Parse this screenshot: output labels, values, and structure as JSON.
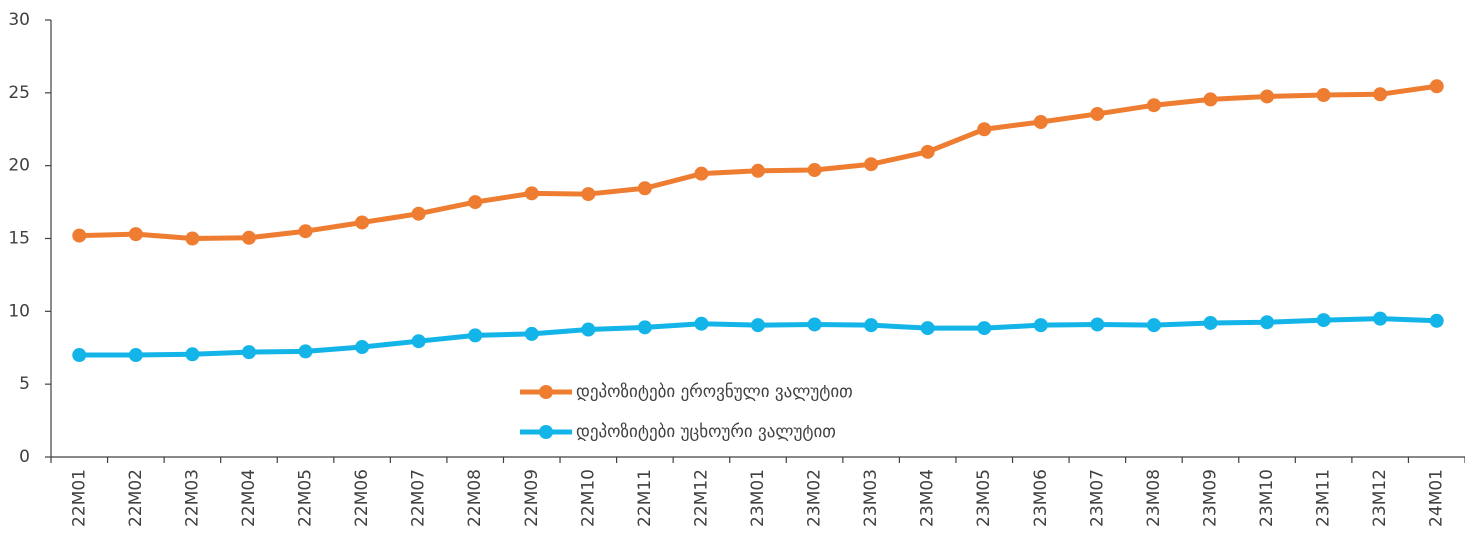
{
  "chart_data": {
    "type": "line",
    "categories": [
      "22M01",
      "22M02",
      "22M03",
      "22M04",
      "22M05",
      "22M06",
      "22M07",
      "22M08",
      "22M09",
      "22M10",
      "22M11",
      "22M12",
      "23M01",
      "23M02",
      "23M03",
      "23M04",
      "23M05",
      "23M06",
      "23M07",
      "23M08",
      "23M09",
      "23M10",
      "23M11",
      "23M12",
      "24M01"
    ],
    "series": [
      {
        "name": "დეპოზიტები ეროვნული ვალუტით",
        "color": "#ee7d31",
        "values": [
          15.2,
          15.3,
          15.0,
          15.05,
          15.5,
          16.1,
          16.7,
          17.5,
          18.1,
          18.05,
          18.45,
          19.45,
          19.65,
          19.7,
          20.1,
          20.95,
          22.5,
          23.0,
          23.55,
          24.15,
          24.55,
          24.75,
          24.85,
          24.9,
          25.45
        ]
      },
      {
        "name": "დეპოზიტები უცხოური ვალუტით",
        "color": "#13b4e8",
        "values": [
          7.0,
          7.0,
          7.05,
          7.2,
          7.25,
          7.55,
          7.95,
          8.35,
          8.45,
          8.75,
          8.9,
          9.15,
          9.05,
          9.1,
          9.05,
          8.85,
          8.85,
          9.05,
          9.1,
          9.05,
          9.2,
          9.25,
          9.4,
          9.5,
          9.35
        ]
      }
    ],
    "ylim": [
      0,
      30
    ],
    "yticks": [
      0,
      5,
      10,
      15,
      20,
      25,
      30
    ]
  }
}
